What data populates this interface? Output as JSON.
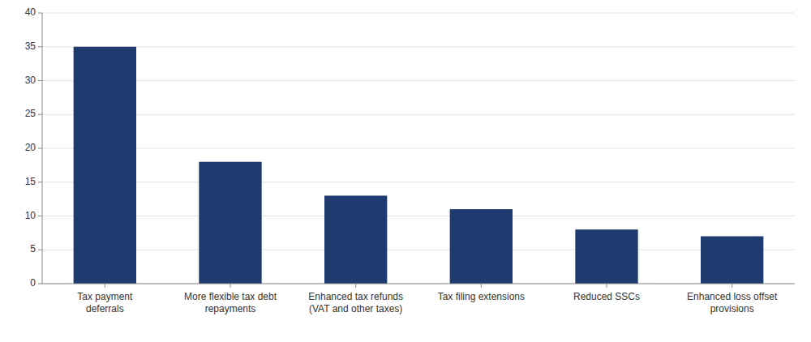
{
  "chart_data": {
    "type": "bar",
    "categories": [
      "Tax payment\ndeferrals",
      "More flexible tax debt\nrepayments",
      "Enhanced tax refunds\n(VAT and other taxes)",
      "Tax filing extensions",
      "Reduced SSCs",
      "Enhanced loss offset\nprovisions"
    ],
    "values": [
      35,
      18,
      13,
      11,
      8,
      7
    ],
    "color": "#1F3A6E",
    "ylim": [
      0,
      40
    ],
    "yticks": [
      0,
      5,
      10,
      15,
      20,
      25,
      30,
      35,
      40
    ],
    "grid": true
  }
}
